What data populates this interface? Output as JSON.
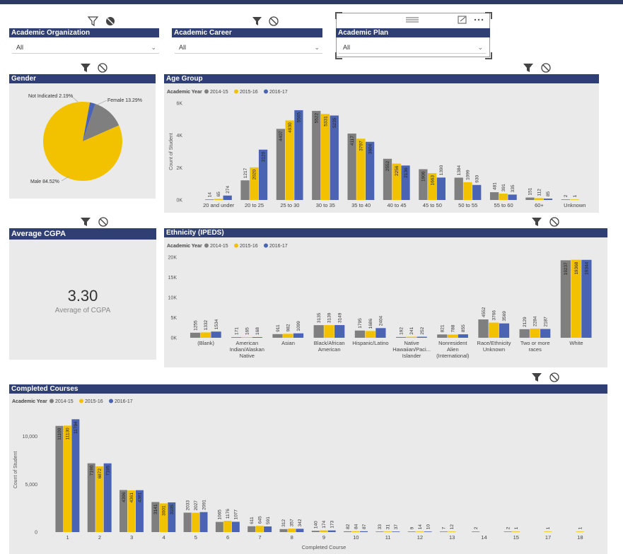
{
  "colors": {
    "s1": "#7f7f7f",
    "s2": "#f2c200",
    "s3": "#4a64b3",
    "title_bar": "#2f3f73",
    "tile": "#eaeaea"
  },
  "slicers": {
    "org": {
      "title": "Academic Organization",
      "value": "All"
    },
    "career": {
      "title": "Academic Career",
      "value": "All"
    },
    "plan": {
      "title": "Academic Plan",
      "value": "All"
    }
  },
  "kpi": {
    "title": "Average CGPA",
    "value": "3.30",
    "label": "Average of CGPA"
  },
  "icons": [
    "filter-icon",
    "no-filter-icon",
    "drag-handle-icon",
    "focus-mode-icon",
    "more-options-icon"
  ],
  "chart_data": [
    {
      "id": "gender",
      "type": "pie",
      "title": "Gender",
      "slices": [
        {
          "label": "Female",
          "display": "Female 13.29%",
          "value": 13.29,
          "color": "#7f7f7f"
        },
        {
          "label": "Male",
          "display": "Male 84.52%",
          "value": 84.52,
          "color": "#f2c200"
        },
        {
          "label": "Not Indicated",
          "display": "Not Indicated 2.19%",
          "value": 2.19,
          "color": "#4a64b3"
        }
      ]
    },
    {
      "id": "age",
      "type": "bar",
      "title": "Age Group",
      "legend_title": "Academic Year",
      "categories": [
        "20 and under",
        "20 to 25",
        "25 to 30",
        "30 to 35",
        "35 to 40",
        "40 to 45",
        "45 to 50",
        "50 to 55",
        "55 to 60",
        "60+",
        "Unknown"
      ],
      "series": [
        {
          "name": "2014-15",
          "values": [
            14,
            1217,
            4407,
            5522,
            4117,
            2552,
            1906,
            1384,
            481,
            151,
            2
          ]
        },
        {
          "name": "2015-16",
          "values": [
            65,
            2020,
            4930,
            5331,
            3797,
            2256,
            1663,
            1099,
            391,
            112,
            1
          ]
        },
        {
          "name": "2016-17",
          "values": [
            274,
            3120,
            5565,
            5235,
            3604,
            2136,
            1390,
            930,
            335,
            85,
            null
          ]
        }
      ],
      "yticks": [
        "0K",
        "2K",
        "4K",
        "6K"
      ],
      "ylim": [
        0,
        6000
      ]
    },
    {
      "id": "eth",
      "type": "bar",
      "title": "Ethnicity (IPEDS)",
      "legend_title": "Academic Year",
      "categories": [
        [
          "(Blank)"
        ],
        [
          "American",
          "Indian/Alaskan",
          "Native"
        ],
        [
          "Asian"
        ],
        [
          "Black/African",
          "American"
        ],
        [
          "Hispanic/Latino"
        ],
        [
          "Native",
          "Hawaiian/Paci...",
          "Islander"
        ],
        [
          "Nonresident",
          "Alien",
          "(International)"
        ],
        [
          "Race/Ethnicity",
          "Unknown"
        ],
        [
          "Two or more",
          "races"
        ],
        [
          "White"
        ]
      ],
      "series": [
        {
          "name": "2014-15",
          "values": [
            1255,
            171,
            911,
            3135,
            1795,
            192,
            821,
            4552,
            2129,
            19237
          ]
        },
        {
          "name": "2015-16",
          "values": [
            1332,
            165,
            982,
            3139,
            1686,
            241,
            788,
            3766,
            2284,
            19368
          ]
        },
        {
          "name": "2016-17",
          "values": [
            1534,
            168,
            1099,
            3149,
            2404,
            252,
            855,
            3569,
            2187,
            19344
          ]
        }
      ],
      "yticks": [
        "0K",
        "5K",
        "10K",
        "15K",
        "20K"
      ],
      "ylim": [
        0,
        20000
      ]
    },
    {
      "id": "courses",
      "type": "bar",
      "title": "Completed Courses",
      "legend_title": "Academic Year",
      "xlabel": "Completed Course",
      "ylabel": "Count of Student",
      "categories": [
        "1",
        "2",
        "3",
        "4",
        "5",
        "6",
        "7",
        "8",
        "9",
        "10",
        "11",
        "12",
        "13",
        "14",
        "15",
        "17",
        "18"
      ],
      "series": [
        {
          "name": "2014-15",
          "values": [
            11100,
            7190,
            4396,
            3141,
            2033,
            1065,
            611,
            312,
            140,
            82,
            33,
            9,
            7,
            2,
            2,
            null,
            null
          ]
        },
        {
          "name": "2015-16",
          "values": [
            11130,
            6872,
            4361,
            3001,
            2027,
            1176,
            645,
            357,
            174,
            84,
            31,
            14,
            12,
            null,
            1,
            1,
            1
          ]
        },
        {
          "name": "2016-17",
          "values": [
            11794,
            7185,
            4381,
            3105,
            2091,
            1077,
            591,
            342,
            173,
            87,
            37,
            10,
            null,
            null,
            null,
            null,
            null
          ]
        }
      ],
      "yticks": [
        "0",
        "5,000",
        "10,000"
      ],
      "ylim": [
        0,
        13000
      ]
    }
  ],
  "axis": {
    "age_ylabel": "Count of Student"
  }
}
